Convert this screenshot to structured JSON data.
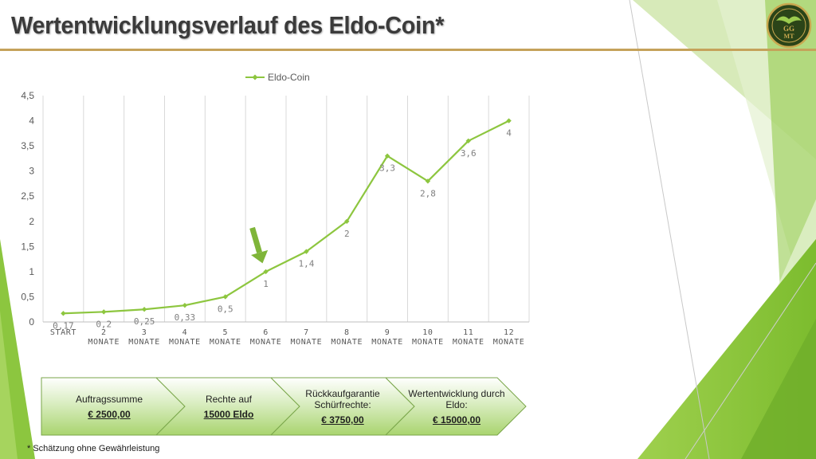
{
  "slide": {
    "title": "Wertentwicklungsverlauf des Eldo-Coin*",
    "footnote": "* Schätzung ohne Gewährleistung",
    "logo_text": [
      "GG",
      "MT"
    ]
  },
  "colors": {
    "series": "#8dc63f",
    "accent_rule": "#c5a25a",
    "arrow": "#7fb539",
    "process_fill": "#b5db86"
  },
  "chart_data": {
    "type": "line",
    "title": "",
    "series": [
      {
        "name": "Eldo-Coin",
        "values": [
          0.17,
          0.2,
          0.25,
          0.33,
          0.5,
          1,
          1.4,
          2,
          3.3,
          2.8,
          3.6,
          4
        ]
      }
    ],
    "data_labels": [
      "0,17",
      "0,2",
      "0,25",
      "0,33",
      "0,5",
      "1",
      "1,4",
      "2",
      "3,3",
      "2,8",
      "3,6",
      "4"
    ],
    "categories": [
      [
        "START"
      ],
      [
        "2",
        "MONATE"
      ],
      [
        "3",
        "MONATE"
      ],
      [
        "4",
        "MONATE"
      ],
      [
        "5",
        "MONATE"
      ],
      [
        "6",
        "MONATE"
      ],
      [
        "7",
        "MONATE"
      ],
      [
        "8",
        "MONATE"
      ],
      [
        "9",
        "MONATE"
      ],
      [
        "10",
        "MONATE"
      ],
      [
        "11",
        "MONATE"
      ],
      [
        "12",
        "MONATE"
      ]
    ],
    "y_ticks": [
      "0",
      "0,5",
      "1",
      "1,5",
      "2",
      "2,5",
      "3",
      "3,5",
      "4",
      "4,5"
    ],
    "ylim": [
      0,
      4.5
    ],
    "legend": "top",
    "grid": "vertical",
    "annotation": {
      "type": "arrow",
      "points_to_index": 5
    }
  },
  "process": {
    "steps": [
      {
        "label": "Auftragssumme",
        "value": "€ 2500,00"
      },
      {
        "label": "Rechte auf",
        "value": "15000 Eldo"
      },
      {
        "label": "Rückkaufgarantie Schürfrechte:",
        "value": "€ 3750,00"
      },
      {
        "label": "Wertentwicklung durch Eldo:",
        "value": "€ 15000,00"
      }
    ]
  }
}
